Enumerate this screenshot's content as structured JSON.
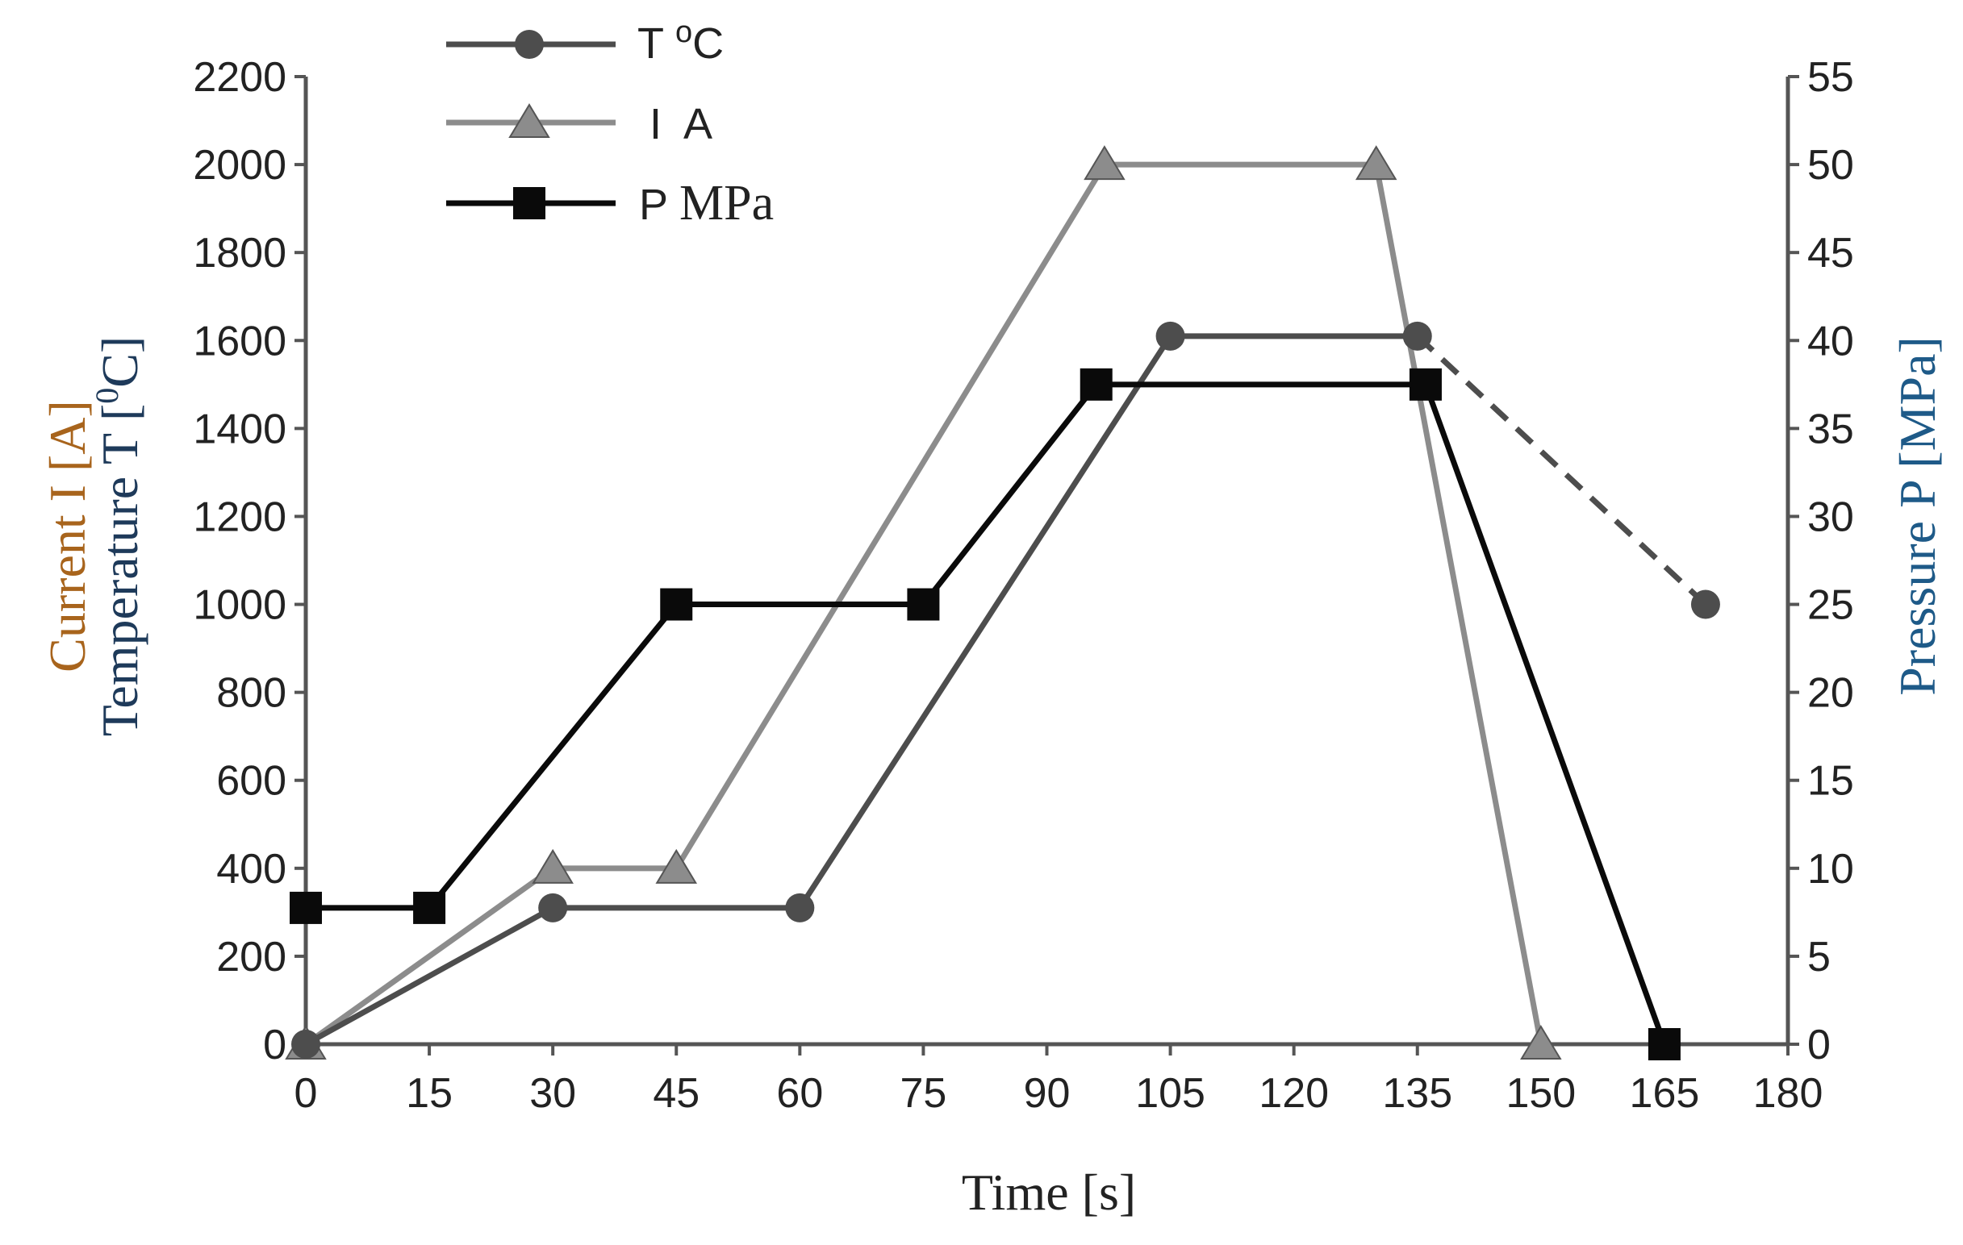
{
  "chart_data": {
    "type": "line",
    "title": "",
    "xlabel": "Time [s]",
    "ylabel_left_line1": "Current I [A]",
    "ylabel_left_line2_prefix": "Temperature T [",
    "ylabel_left_line2_sup": "0",
    "ylabel_left_line2_suffix": "C]",
    "ylabel_right": "Pressure P [MPa]",
    "xlim": [
      0,
      180
    ],
    "ylim_left": [
      0,
      2200
    ],
    "ylim_right": [
      0,
      55
    ],
    "x_ticks": [
      "0",
      "15",
      "30",
      "45",
      "60",
      "75",
      "90",
      "105",
      "120",
      "135",
      "150",
      "165",
      "180"
    ],
    "y_left_ticks": [
      "0",
      "200",
      "400",
      "600",
      "800",
      "1000",
      "1200",
      "1400",
      "1600",
      "1800",
      "2000",
      "2200"
    ],
    "y_right_ticks": [
      "0",
      "5",
      "10",
      "15",
      "20",
      "25",
      "30",
      "35",
      "40",
      "45",
      "50",
      "55"
    ],
    "legend_position": "top-left",
    "legend": {
      "temperature": {
        "prefix": "T ",
        "sup": "o",
        "suffix": "C"
      },
      "current": {
        "label": "I  A"
      },
      "pressure": {
        "label_sans": "P ",
        "label_serif": "MPa"
      }
    },
    "series": [
      {
        "name": "T oC",
        "axis": "left",
        "marker": "circle",
        "color": "#4d4d4d",
        "x": [
          0,
          30,
          60,
          105,
          135
        ],
        "y": [
          0,
          310,
          310,
          1610,
          1610
        ],
        "dashed_extension": {
          "x": [
            135,
            170
          ],
          "y": [
            1610,
            1000
          ]
        }
      },
      {
        "name": "I A",
        "axis": "left",
        "marker": "triangle",
        "color": "#8c8c8c",
        "x": [
          0,
          30,
          45,
          97,
          130,
          150
        ],
        "y": [
          0,
          400,
          400,
          2000,
          2000,
          0
        ]
      },
      {
        "name": "P MPa",
        "axis": "right",
        "marker": "square",
        "color": "#0a0a0a",
        "x": [
          0,
          15,
          45,
          75,
          96,
          136,
          165
        ],
        "y": [
          7.75,
          7.75,
          25,
          25,
          37.5,
          37.5,
          0
        ]
      }
    ],
    "colors": {
      "left_label": "#a8641c",
      "right_label": "#1e5a88",
      "axis": "#555555"
    }
  }
}
